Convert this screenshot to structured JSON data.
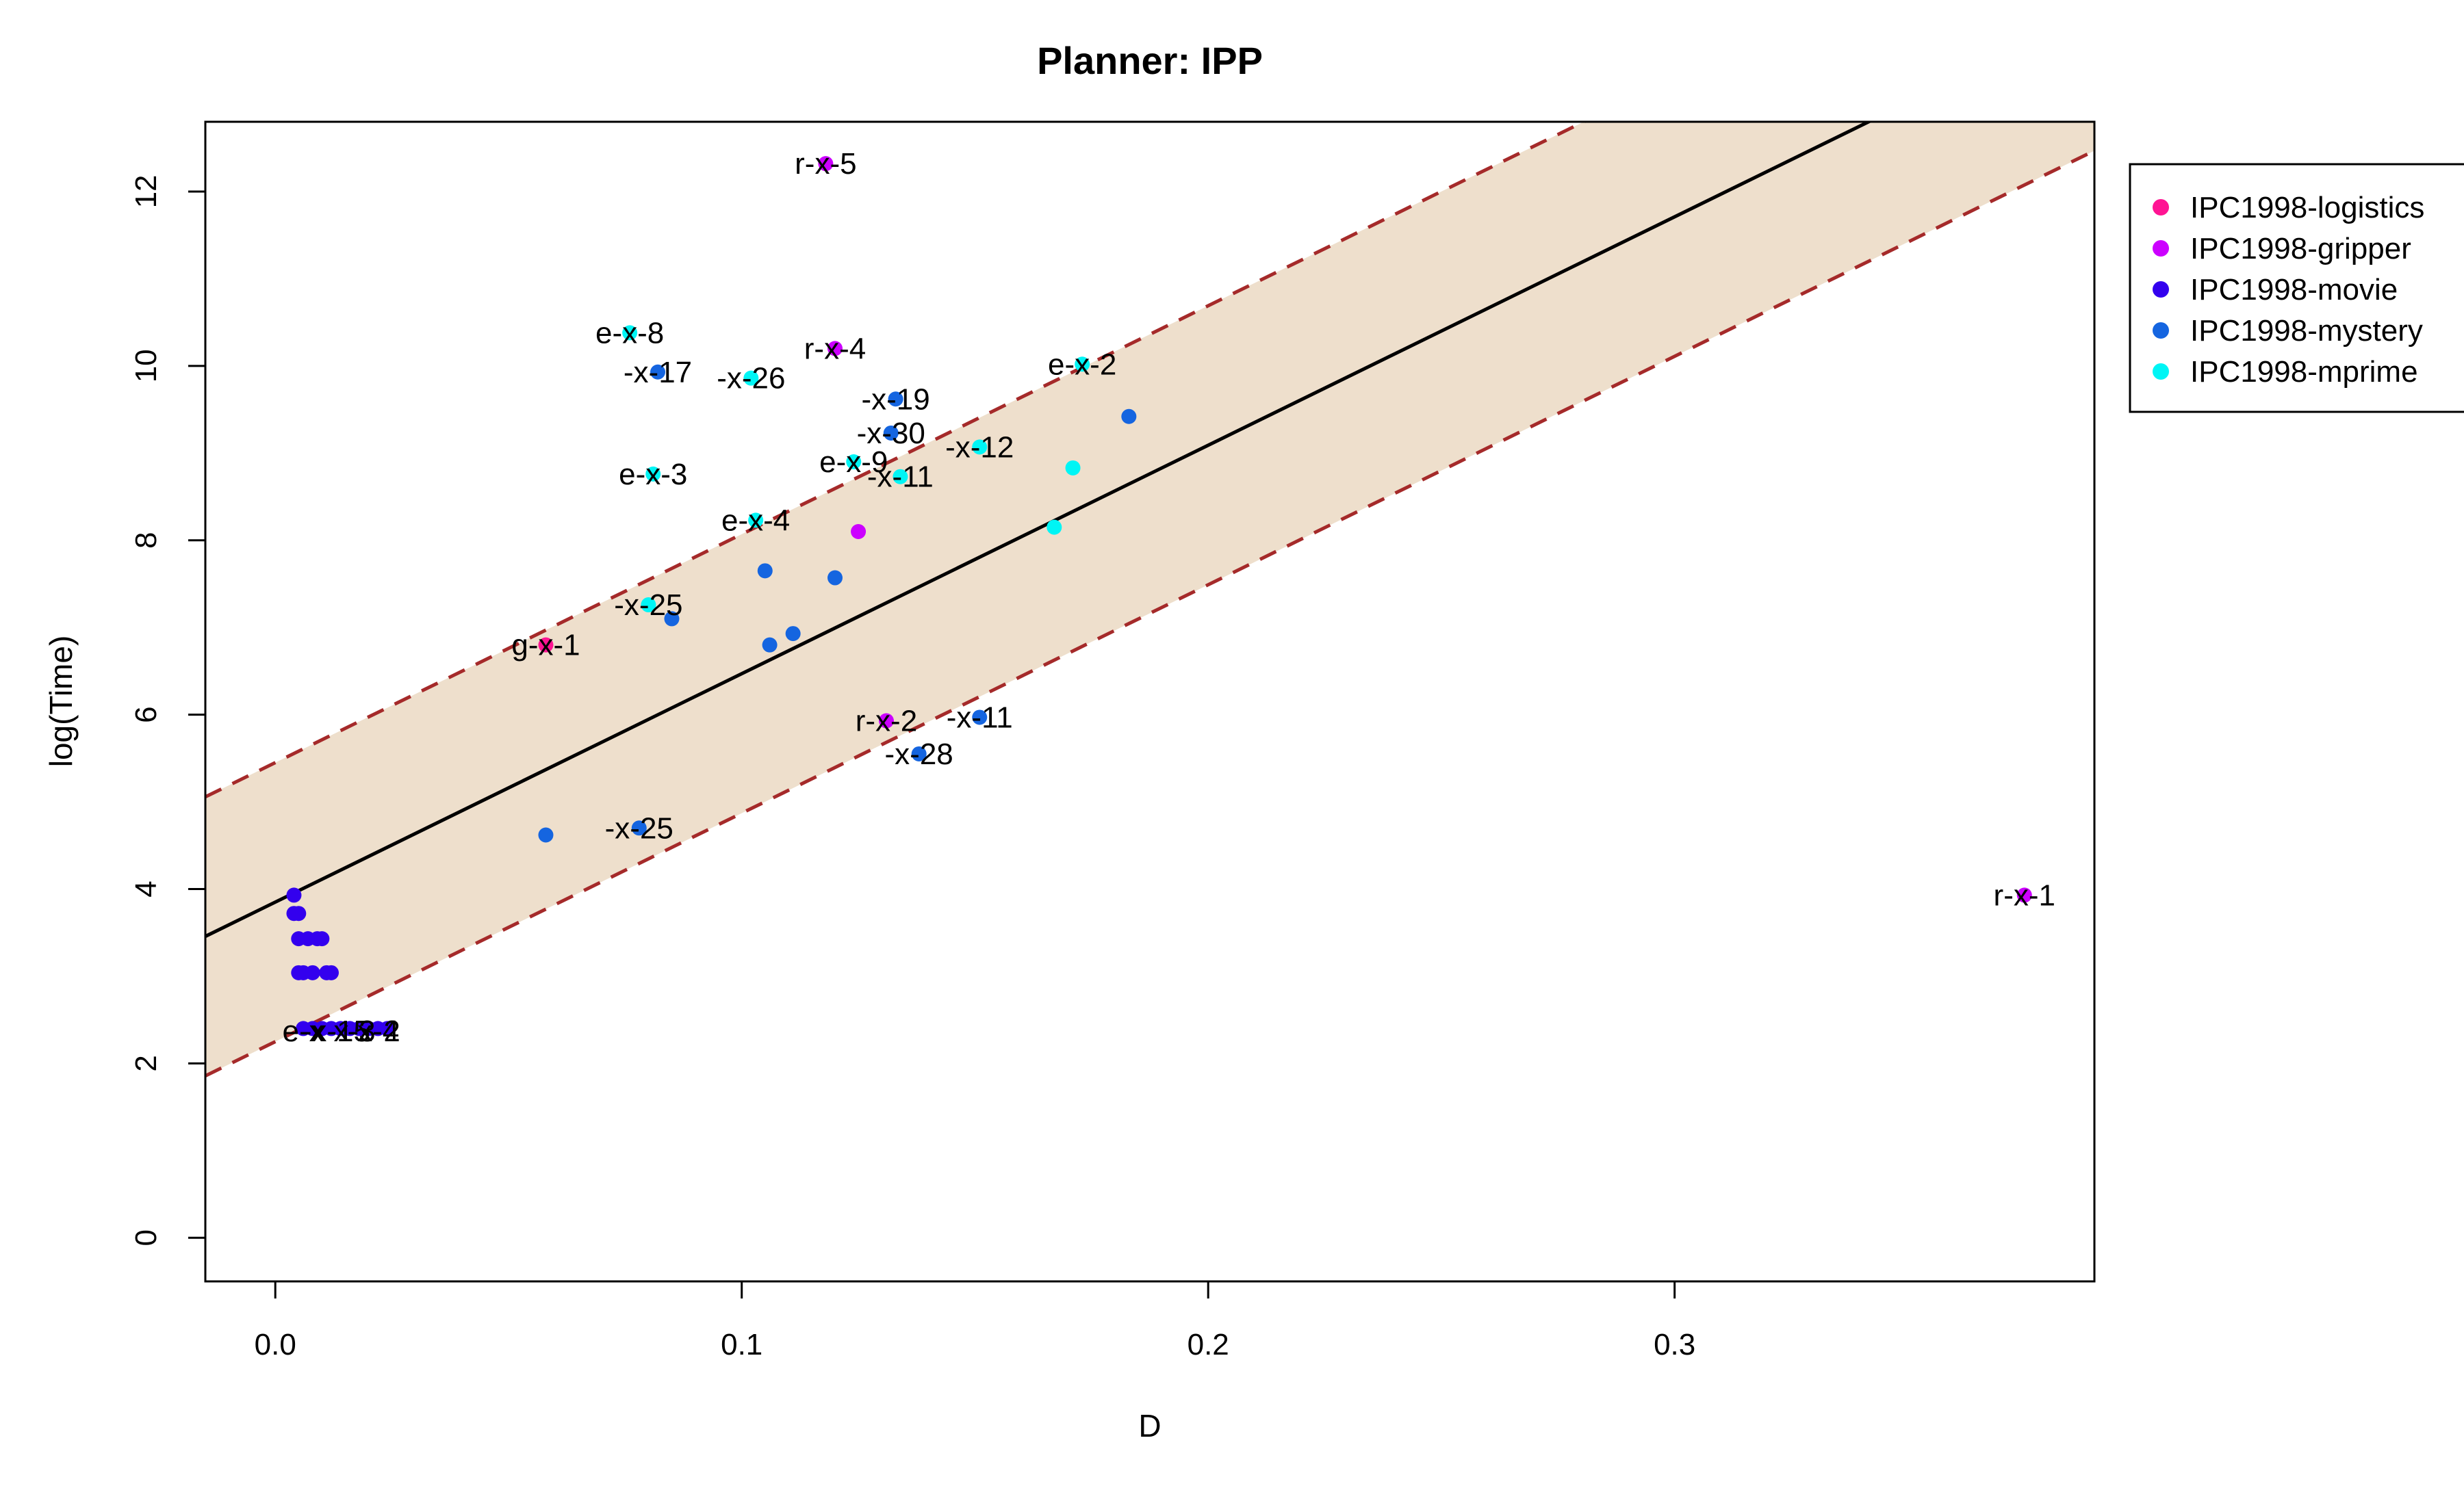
{
  "chart_data": {
    "type": "scatter",
    "title": "Planner: IPP",
    "xlabel": "D",
    "ylabel": "log(Time)",
    "xlim": [
      -0.015,
      0.39
    ],
    "ylim": [
      -0.5,
      12.8
    ],
    "x_ticks": [
      "0.0",
      "0.1",
      "0.2",
      "0.3"
    ],
    "y_ticks": [
      "0",
      "2",
      "4",
      "6",
      "8",
      "10",
      "12"
    ],
    "legend_position": "right, outside plot",
    "regression_line": {
      "intercept": 3.85,
      "slope": 26.2,
      "color": "#000000"
    },
    "prediction_band": {
      "offset": 1.6,
      "fill": "#eedfcc",
      "line_color": "#a52a2a",
      "line_style": "dashed"
    },
    "series": [
      {
        "name": "IPC1998-logistics",
        "color": "#ff1493",
        "points": [
          {
            "x": 0.058,
            "y": 6.8,
            "label": "g-x-1"
          }
        ]
      },
      {
        "name": "IPC1998-gripper",
        "color": "#cc00ff",
        "points": [
          {
            "x": 0.118,
            "y": 12.32,
            "label": "r-x-5"
          },
          {
            "x": 0.12,
            "y": 10.2,
            "label": "r-x-4"
          },
          {
            "x": 0.125,
            "y": 8.1
          },
          {
            "x": 0.131,
            "y": 5.93,
            "label": "r-x-2"
          },
          {
            "x": 0.375,
            "y": 3.93,
            "label": "r-x-1"
          }
        ]
      },
      {
        "name": "IPC1998-movie",
        "color": "#3300ee",
        "points": [
          {
            "x": 0.004,
            "y": 3.93
          },
          {
            "x": 0.004,
            "y": 3.72
          },
          {
            "x": 0.005,
            "y": 3.72
          },
          {
            "x": 0.005,
            "y": 3.43
          },
          {
            "x": 0.007,
            "y": 3.43
          },
          {
            "x": 0.009,
            "y": 3.43
          },
          {
            "x": 0.01,
            "y": 3.43
          },
          {
            "x": 0.005,
            "y": 3.04
          },
          {
            "x": 0.006,
            "y": 3.04
          },
          {
            "x": 0.008,
            "y": 3.04
          },
          {
            "x": 0.011,
            "y": 3.04
          },
          {
            "x": 0.012,
            "y": 3.04
          },
          {
            "x": 0.006,
            "y": 2.4
          },
          {
            "x": 0.008,
            "y": 2.4
          },
          {
            "x": 0.01,
            "y": 2.4
          },
          {
            "x": 0.012,
            "y": 2.4
          },
          {
            "x": 0.014,
            "y": 2.4
          },
          {
            "x": 0.016,
            "y": 2.4
          },
          {
            "x": 0.018,
            "y": 2.4
          },
          {
            "x": 0.02,
            "y": 2.4
          },
          {
            "x": 0.022,
            "y": 2.4
          },
          {
            "x": 0.024,
            "y": 2.4
          }
        ]
      },
      {
        "name": "IPC1998-mystery",
        "color": "#1565e0",
        "points": [
          {
            "x": 0.082,
            "y": 9.93,
            "label": "-x-17"
          },
          {
            "x": 0.133,
            "y": 9.62,
            "label": "-x-19"
          },
          {
            "x": 0.132,
            "y": 9.23,
            "label": "-x-30"
          },
          {
            "x": 0.183,
            "y": 9.42
          },
          {
            "x": 0.105,
            "y": 7.65
          },
          {
            "x": 0.12,
            "y": 7.57
          },
          {
            "x": 0.085,
            "y": 7.1
          },
          {
            "x": 0.111,
            "y": 6.93
          },
          {
            "x": 0.106,
            "y": 6.8
          },
          {
            "x": 0.151,
            "y": 5.97,
            "label": "-x-11"
          },
          {
            "x": 0.138,
            "y": 5.55,
            "label": "-x-28"
          },
          {
            "x": 0.078,
            "y": 4.7,
            "label": "-x-25"
          },
          {
            "x": 0.058,
            "y": 4.62
          }
        ]
      },
      {
        "name": "IPC1998-mprime",
        "color": "#00f5f5",
        "points": [
          {
            "x": 0.076,
            "y": 10.38,
            "label": "e-x-8"
          },
          {
            "x": 0.102,
            "y": 9.86,
            "label": "-x-26"
          },
          {
            "x": 0.173,
            "y": 10.02,
            "label": "e-x-2"
          },
          {
            "x": 0.151,
            "y": 9.07,
            "label": "-x-12"
          },
          {
            "x": 0.124,
            "y": 8.9,
            "label": "e-x-9"
          },
          {
            "x": 0.134,
            "y": 8.73,
            "label": "-x-11"
          },
          {
            "x": 0.171,
            "y": 8.83
          },
          {
            "x": 0.081,
            "y": 8.76,
            "label": "e-x-3"
          },
          {
            "x": 0.103,
            "y": 8.23,
            "label": "e-x-4"
          },
          {
            "x": 0.167,
            "y": 8.15
          },
          {
            "x": 0.08,
            "y": 7.26,
            "label": "-x-25"
          }
        ]
      }
    ],
    "cluster_labels": [
      {
        "x": 0.006,
        "y": 2.37,
        "label": "e-x"
      },
      {
        "x": 0.013,
        "y": 2.37,
        "label": "-x-15"
      },
      {
        "x": 0.017,
        "y": 2.37,
        "label": "x-3"
      },
      {
        "x": 0.021,
        "y": 2.37,
        "label": "-x-4"
      },
      {
        "x": 0.025,
        "y": 2.37,
        "label": "2"
      }
    ]
  }
}
